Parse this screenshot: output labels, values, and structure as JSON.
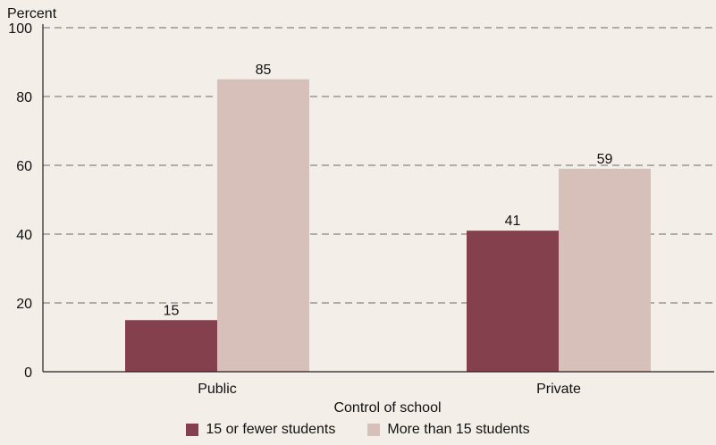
{
  "chart_data": {
    "type": "bar",
    "ylabel": "Percent",
    "xlabel": "Control of school",
    "categories": [
      "Public",
      "Private"
    ],
    "series": [
      {
        "name": "15 or fewer students",
        "values": [
          15,
          41
        ],
        "color": "#84404c"
      },
      {
        "name": "More than 15 students",
        "values": [
          85,
          59
        ],
        "color": "#d6c0b9"
      }
    ],
    "ylim": [
      0,
      100
    ],
    "yticks": [
      "0",
      "20",
      "40",
      "60",
      "80",
      "100"
    ],
    "grid": true,
    "legend": "bottom-center"
  }
}
